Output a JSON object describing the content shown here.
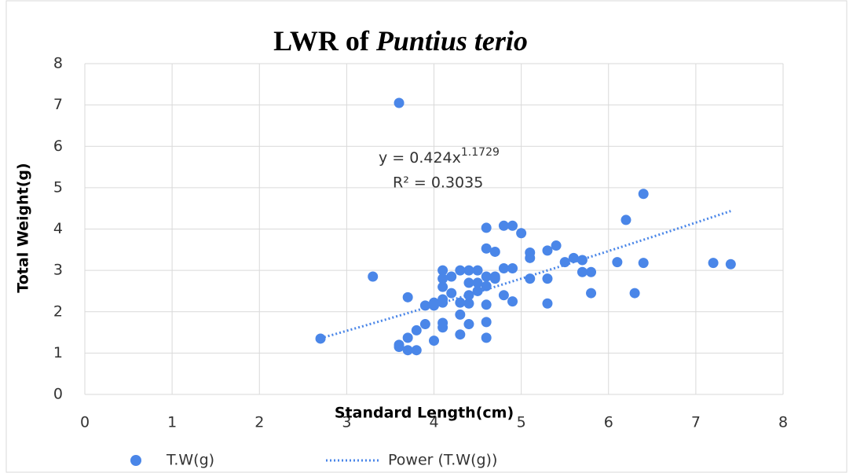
{
  "chart_data": {
    "type": "scatter",
    "title": [
      "LWR of",
      "Puntius terio"
    ],
    "x_label": "Standard Length(cm)",
    "y_label": "Total Weight(g)",
    "xlim": [
      0,
      8
    ],
    "xticks": [
      0,
      1,
      2,
      3,
      4,
      5,
      6,
      7,
      8
    ],
    "ylim": [
      0,
      8
    ],
    "yticks": [
      0,
      1,
      2,
      3,
      4,
      5,
      6,
      7,
      8
    ],
    "grid": true,
    "legend": "bottom",
    "series": [
      {
        "name": "T.W(g)",
        "color": "#4a86e8",
        "x": [
          2.7,
          3.3,
          3.6,
          3.6,
          3.6,
          3.7,
          3.7,
          3.7,
          3.8,
          3.8,
          3.9,
          3.9,
          4.0,
          4.0,
          4.0,
          4.1,
          4.1,
          4.1,
          4.1,
          4.1,
          4.1,
          4.1,
          4.2,
          4.2,
          4.3,
          4.3,
          4.3,
          4.3,
          4.4,
          4.4,
          4.4,
          4.4,
          4.4,
          4.5,
          4.5,
          4.5,
          4.6,
          4.6,
          4.6,
          4.6,
          4.6,
          4.6,
          4.6,
          4.7,
          4.7,
          4.7,
          4.8,
          4.8,
          4.8,
          4.9,
          4.9,
          4.9,
          5.0,
          5.1,
          5.1,
          5.1,
          5.3,
          5.3,
          5.3,
          5.4,
          5.5,
          5.6,
          5.7,
          5.7,
          5.8,
          5.8,
          6.1,
          6.2,
          6.3,
          6.4,
          6.4,
          7.2,
          7.4
        ],
        "values": [
          1.35,
          2.85,
          7.05,
          1.2,
          1.15,
          2.35,
          1.37,
          1.07,
          1.55,
          1.07,
          2.15,
          1.7,
          2.15,
          2.22,
          1.3,
          3.0,
          2.8,
          2.6,
          2.3,
          2.22,
          1.73,
          1.62,
          2.85,
          2.45,
          3.0,
          2.22,
          1.93,
          1.45,
          3.0,
          2.7,
          2.4,
          2.2,
          1.7,
          3.0,
          2.7,
          2.5,
          4.03,
          3.53,
          2.85,
          2.62,
          2.17,
          1.75,
          1.37,
          3.45,
          2.85,
          2.8,
          4.08,
          3.05,
          2.4,
          4.08,
          3.05,
          2.25,
          3.9,
          3.43,
          3.3,
          2.8,
          3.48,
          2.8,
          2.2,
          3.6,
          3.2,
          3.3,
          3.25,
          2.96,
          2.96,
          2.45,
          3.2,
          4.22,
          2.45,
          4.85,
          3.18,
          3.18,
          3.15
        ]
      }
    ],
    "trendline": {
      "name": "Power (T.W(g))",
      "color": "#4a86e8",
      "a": 0.424,
      "b": 1.1729,
      "x_range": [
        2.7,
        7.4
      ]
    },
    "annotations": {
      "equation_base": "y = 0.424x",
      "equation_exponent": "1.1729",
      "r_squared": "R² = 0.3035"
    }
  }
}
